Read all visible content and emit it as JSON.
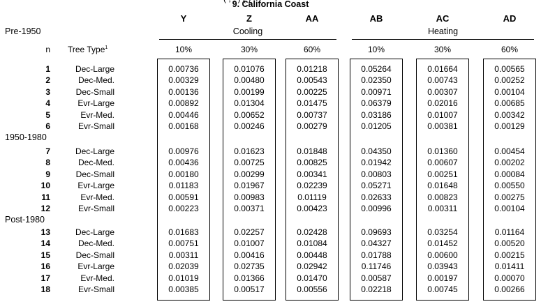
{
  "top_clipped_text": "(                                                   ,  ,   ) (                )",
  "title": "9. California Coast",
  "columns": [
    "Y",
    "Z",
    "AA",
    "AB",
    "AC",
    "AD"
  ],
  "groups": {
    "cooling": "Cooling",
    "heating": "Heating"
  },
  "header": {
    "n": "n",
    "tree_type": "Tree Type",
    "superscript": "1"
  },
  "percents": [
    "10%",
    "30%",
    "60%",
    "10%",
    "30%",
    "60%"
  ],
  "periods": [
    "Pre-1950",
    "1950-1980",
    "Post-1980"
  ],
  "rows": [
    {
      "n": "1",
      "type": "Dec-Large",
      "v": [
        "0.00736",
        "0.01076",
        "0.01218",
        "0.05264",
        "0.01664",
        "0.00565"
      ]
    },
    {
      "n": "2",
      "type": "Dec-Med.",
      "v": [
        "0.00329",
        "0.00480",
        "0.00543",
        "0.02350",
        "0.00743",
        "0.00252"
      ]
    },
    {
      "n": "3",
      "type": "Dec-Small",
      "v": [
        "0.00136",
        "0.00199",
        "0.00225",
        "0.00971",
        "0.00307",
        "0.00104"
      ]
    },
    {
      "n": "4",
      "type": "Evr-Large",
      "v": [
        "0.00892",
        "0.01304",
        "0.01475",
        "0.06379",
        "0.02016",
        "0.00685"
      ]
    },
    {
      "n": "5",
      "type": "Evr-Med.",
      "v": [
        "0.00446",
        "0.00652",
        "0.00737",
        "0.03186",
        "0.01007",
        "0.00342"
      ]
    },
    {
      "n": "6",
      "type": "Evr-Small",
      "v": [
        "0.00168",
        "0.00246",
        "0.00279",
        "0.01205",
        "0.00381",
        "0.00129"
      ]
    },
    {
      "n": "7",
      "type": "Dec-Large",
      "v": [
        "0.00976",
        "0.01623",
        "0.01848",
        "0.04350",
        "0.01360",
        "0.00454"
      ]
    },
    {
      "n": "8",
      "type": "Dec-Med.",
      "v": [
        "0.00436",
        "0.00725",
        "0.00825",
        "0.01942",
        "0.00607",
        "0.00202"
      ]
    },
    {
      "n": "9",
      "type": "Dec-Small",
      "v": [
        "0.00180",
        "0.00299",
        "0.00341",
        "0.00803",
        "0.00251",
        "0.00084"
      ]
    },
    {
      "n": "10",
      "type": "Evr-Large",
      "v": [
        "0.01183",
        "0.01967",
        "0.02239",
        "0.05271",
        "0.01648",
        "0.00550"
      ]
    },
    {
      "n": "11",
      "type": "Evr-Med.",
      "v": [
        "0.00591",
        "0.00983",
        "0.01119",
        "0.02633",
        "0.00823",
        "0.00275"
      ]
    },
    {
      "n": "12",
      "type": "Evr-Small",
      "v": [
        "0.00223",
        "0.00371",
        "0.00423",
        "0.00996",
        "0.00311",
        "0.00104"
      ]
    },
    {
      "n": "13",
      "type": "Dec-Large",
      "v": [
        "0.01683",
        "0.02257",
        "0.02428",
        "0.09693",
        "0.03254",
        "0.01164"
      ]
    },
    {
      "n": "14",
      "type": "Dec-Med.",
      "v": [
        "0.00751",
        "0.01007",
        "0.01084",
        "0.04327",
        "0.01452",
        "0.00520"
      ]
    },
    {
      "n": "15",
      "type": "Dec-Small",
      "v": [
        "0.00311",
        "0.00416",
        "0.00448",
        "0.01788",
        "0.00600",
        "0.00215"
      ]
    },
    {
      "n": "16",
      "type": "Evr-Large",
      "v": [
        "0.02039",
        "0.02735",
        "0.02942",
        "0.11746",
        "0.03943",
        "0.01411"
      ]
    },
    {
      "n": "17",
      "type": "Evr-Med.",
      "v": [
        "0.01019",
        "0.01366",
        "0.01470",
        "0.00587",
        "0.00197",
        "0.00070"
      ]
    },
    {
      "n": "18",
      "type": "Evr-Small",
      "v": [
        "0.00385",
        "0.00517",
        "0.00556",
        "0.02218",
        "0.00745",
        "0.00266"
      ]
    }
  ]
}
